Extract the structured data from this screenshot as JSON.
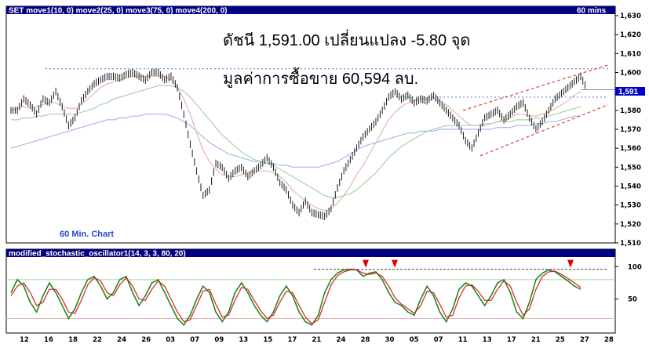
{
  "header": {
    "main_title": "SET move1(10, 0) move2(25, 0) move3(75, 0) move4(200, 0)",
    "timeframe": "60 mins",
    "osc_title": "modified_stochastic_oscillator1(14, 3, 3, 80, 20)"
  },
  "annotations": {
    "line1": "ดัชนี 1,591.00 เปลี่ยนแปลง -5.80 จุด",
    "line2": "มูลค่าการซื้อขาย 60,594 ลบ.",
    "chart_note": "60 Min. Chart",
    "last_price_label": "1,591"
  },
  "colors": {
    "title_bar": "#000080",
    "price_bars": "#1a1a1a",
    "ma10": "#e7b5b5",
    "ma25": "#a6d3a6",
    "ma75": "#aab9e8",
    "support_line": "#6c84e8",
    "channel": "#e34040",
    "stoch_k": "#1f8a1f",
    "stoch_d": "#d42020",
    "arrow": "#e00000",
    "last_price_box": "#0000c8"
  },
  "chart_data": [
    {
      "type": "line",
      "ylim": [
        1510,
        1630
      ],
      "yticks": [
        "1,630",
        "1,620",
        "1,610",
        "1,600",
        "1,590",
        "1,580",
        "1,570",
        "1,560",
        "1,550",
        "1,540",
        "1,530",
        "1,520",
        "1,510"
      ],
      "xticks": [
        "12",
        "16",
        "18",
        "22",
        "24",
        "26",
        "03",
        "07",
        "09",
        "13",
        "15",
        "17",
        "21",
        "24",
        "28",
        "30",
        "05",
        "07",
        "11",
        "13",
        "17",
        "21",
        "25",
        "27",
        "28"
      ],
      "price": [
        1580,
        1586,
        1583,
        1578,
        1586,
        1584,
        1590,
        1582,
        1572,
        1576,
        1585,
        1590,
        1594,
        1596,
        1598,
        1598,
        1597,
        1599,
        1600,
        1598,
        1596,
        1600,
        1600,
        1596,
        1598,
        1592,
        1578,
        1562,
        1548,
        1535,
        1538,
        1552,
        1550,
        1544,
        1548,
        1550,
        1545,
        1548,
        1551,
        1555,
        1550,
        1542,
        1538,
        1530,
        1526,
        1532,
        1526,
        1525,
        1524,
        1528,
        1539,
        1548,
        1554,
        1560,
        1566,
        1570,
        1574,
        1580,
        1587,
        1590,
        1586,
        1588,
        1584,
        1586,
        1585,
        1588,
        1584,
        1580,
        1576,
        1572,
        1564,
        1560,
        1568,
        1576,
        1578,
        1580,
        1575,
        1578,
        1582,
        1584,
        1576,
        1570,
        1574,
        1580,
        1586,
        1589,
        1592,
        1595,
        1598,
        1591
      ],
      "ma10": [
        1580,
        1581,
        1582,
        1581,
        1582,
        1583,
        1584,
        1584,
        1582,
        1581,
        1581,
        1583,
        1586,
        1589,
        1592,
        1594,
        1595,
        1596,
        1597,
        1598,
        1598,
        1598,
        1598,
        1598,
        1598,
        1596,
        1592,
        1586,
        1578,
        1568,
        1559,
        1553,
        1549,
        1546,
        1545,
        1545,
        1546,
        1547,
        1548,
        1548,
        1548,
        1547,
        1545,
        1542,
        1538,
        1535,
        1532,
        1530,
        1528,
        1527,
        1528,
        1531,
        1535,
        1540,
        1546,
        1551,
        1557,
        1563,
        1569,
        1575,
        1579,
        1582,
        1584,
        1585,
        1586,
        1586,
        1586,
        1585,
        1583,
        1580,
        1577,
        1574,
        1572,
        1572,
        1572,
        1573,
        1574,
        1575,
        1576,
        1578,
        1578,
        1577,
        1577,
        1578,
        1579,
        1581,
        1583,
        1585,
        1588,
        1590
      ],
      "ma25": [
        1575,
        1575,
        1576,
        1576,
        1577,
        1577,
        1578,
        1578,
        1578,
        1578,
        1578,
        1579,
        1580,
        1581,
        1583,
        1584,
        1586,
        1587,
        1588,
        1589,
        1590,
        1591,
        1592,
        1593,
        1593,
        1593,
        1592,
        1590,
        1587,
        1583,
        1579,
        1575,
        1571,
        1567,
        1564,
        1561,
        1558,
        1556,
        1554,
        1553,
        1552,
        1551,
        1549,
        1547,
        1545,
        1543,
        1541,
        1539,
        1537,
        1535,
        1534,
        1534,
        1535,
        1536,
        1538,
        1541,
        1544,
        1547,
        1551,
        1555,
        1558,
        1561,
        1563,
        1565,
        1567,
        1569,
        1570,
        1571,
        1572,
        1572,
        1572,
        1572,
        1572,
        1572,
        1573,
        1573,
        1574,
        1574,
        1574,
        1575,
        1575,
        1575,
        1576,
        1576,
        1577,
        1578,
        1579,
        1580,
        1581,
        1582
      ],
      "ma75": [
        1560,
        1561,
        1562,
        1563,
        1564,
        1565,
        1566,
        1567,
        1568,
        1569,
        1570,
        1571,
        1572,
        1573,
        1574,
        1575,
        1575,
        1576,
        1576,
        1577,
        1577,
        1578,
        1578,
        1578,
        1578,
        1577,
        1576,
        1574,
        1572,
        1569,
        1566,
        1563,
        1561,
        1559,
        1557,
        1556,
        1555,
        1554,
        1553,
        1553,
        1552,
        1552,
        1551,
        1551,
        1550,
        1550,
        1550,
        1550,
        1550,
        1551,
        1552,
        1553,
        1555,
        1557,
        1559,
        1561,
        1562,
        1563,
        1564,
        1565,
        1566,
        1567,
        1568,
        1568,
        1569,
        1569,
        1569,
        1570,
        1570,
        1570,
        1570,
        1570,
        1570,
        1570,
        1570,
        1570,
        1571,
        1571,
        1571,
        1572,
        1572,
        1572,
        1573,
        1573,
        1574,
        1574,
        1575,
        1576,
        1577,
        1577
      ],
      "lines": {
        "resistance": 1602,
        "support": 1587
      },
      "last_price": 1591
    },
    {
      "type": "line",
      "ylim": [
        0,
        110
      ],
      "yticks": [
        "100",
        "50"
      ],
      "k": [
        60,
        80,
        70,
        45,
        30,
        55,
        75,
        60,
        40,
        20,
        35,
        60,
        80,
        85,
        70,
        50,
        60,
        80,
        85,
        60,
        40,
        55,
        75,
        80,
        60,
        40,
        20,
        10,
        25,
        50,
        70,
        60,
        30,
        15,
        30,
        60,
        75,
        60,
        40,
        25,
        15,
        30,
        55,
        70,
        55,
        30,
        15,
        10,
        25,
        60,
        80,
        90,
        95,
        96,
        95,
        85,
        90,
        92,
        80,
        60,
        45,
        40,
        30,
        25,
        50,
        70,
        55,
        30,
        15,
        35,
        65,
        75,
        70,
        55,
        40,
        55,
        75,
        80,
        60,
        30,
        20,
        45,
        80,
        90,
        95,
        92,
        85,
        78,
        70,
        65
      ],
      "d": [
        55,
        70,
        75,
        60,
        40,
        45,
        65,
        65,
        50,
        30,
        28,
        48,
        72,
        83,
        78,
        60,
        55,
        72,
        83,
        70,
        50,
        48,
        65,
        78,
        70,
        50,
        30,
        15,
        18,
        40,
        62,
        65,
        42,
        22,
        25,
        48,
        68,
        65,
        48,
        32,
        20,
        25,
        45,
        62,
        60,
        40,
        22,
        12,
        18,
        45,
        72,
        86,
        92,
        95,
        95,
        90,
        88,
        90,
        85,
        70,
        52,
        42,
        35,
        28,
        40,
        62,
        60,
        42,
        22,
        25,
        52,
        70,
        72,
        62,
        48,
        48,
        65,
        78,
        70,
        45,
        25,
        35,
        65,
        85,
        92,
        93,
        88,
        82,
        75,
        68
      ],
      "levels": {
        "upper": 80,
        "lower": 20,
        "top_line": 96
      }
    }
  ]
}
